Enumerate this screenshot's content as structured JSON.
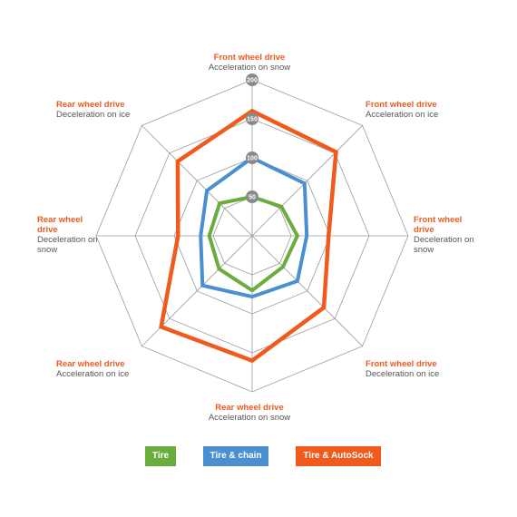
{
  "chart_data": {
    "type": "radar",
    "range": [
      0,
      200
    ],
    "grid_rings": [
      50,
      100,
      150,
      200
    ],
    "tick_labels": [
      "50",
      "100",
      "150",
      "200"
    ],
    "axes": [
      {
        "line1": "Front wheel drive",
        "line2": "Acceleration on snow"
      },
      {
        "line1": "Front wheel drive",
        "line2": "Acceleration on ice"
      },
      {
        "line1": "Front wheel drive",
        "line2": "Deceleration on snow"
      },
      {
        "line1": "Front wheel drive",
        "line2": "Deceleration on ice"
      },
      {
        "line1": "Rear wheel drive",
        "line2": "Acceleration on snow"
      },
      {
        "line1": "Rear wheel drive",
        "line2": "Acceleration on ice"
      },
      {
        "line1": "Rear wheel drive",
        "line2": "Deceleration on snow"
      },
      {
        "line1": "Rear wheel drive",
        "line2": "Deceleration on ice"
      }
    ],
    "series": [
      {
        "name": "Tire",
        "color": "#6aad3d",
        "values": [
          50,
          53,
          58,
          56,
          70,
          60,
          55,
          59
        ]
      },
      {
        "name": "Tire & chain",
        "color": "#4a90d0",
        "values": [
          100,
          95,
          70,
          82,
          78,
          90,
          66,
          82
        ]
      },
      {
        "name": "Tire & AutoSock",
        "color": "#f05a1c",
        "values": [
          160,
          152,
          98,
          130,
          160,
          165,
          95,
          135
        ]
      }
    ]
  }
}
